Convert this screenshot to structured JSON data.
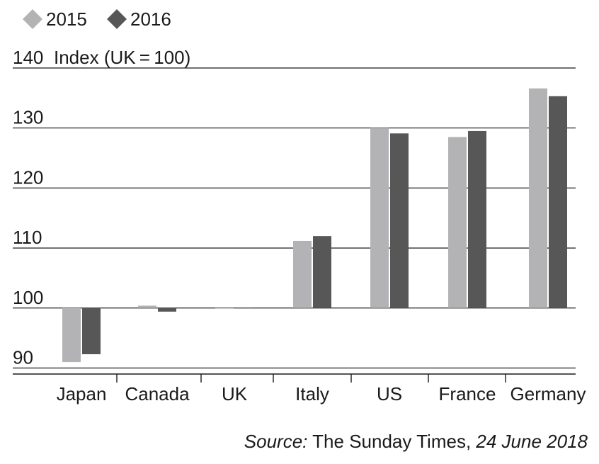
{
  "chart_data": {
    "type": "bar",
    "categories": [
      "Japan",
      "Canada",
      "UK",
      "Italy",
      "US",
      "France",
      "Germany"
    ],
    "series": [
      {
        "name": "2015",
        "color": "#b3b3b5",
        "marker": "diamond",
        "values": [
          91,
          100.4,
          100,
          111.2,
          130,
          128.5,
          136.6
        ]
      },
      {
        "name": "2016",
        "color": "#575758",
        "marker": "diamond",
        "values": [
          92.3,
          99.4,
          100,
          112,
          129.1,
          129.5,
          135.3
        ]
      }
    ],
    "baseline": 100,
    "ylim": [
      89,
      140
    ],
    "yticks": [
      {
        "value": 140,
        "label": "140"
      },
      {
        "value": 130,
        "label": "130"
      },
      {
        "value": 120,
        "label": "120"
      },
      {
        "value": 110,
        "label": "110"
      },
      {
        "value": 100,
        "label": "100"
      },
      {
        "value": 90,
        "label": "90"
      }
    ],
    "ylabel": "Index (UK = 100)",
    "xlabel": "",
    "title": "",
    "grid": true,
    "legend_position": "top-left"
  },
  "source": {
    "prefix": "Source:",
    "publication": "The Sunday Times,",
    "date": "24 June 2018"
  }
}
